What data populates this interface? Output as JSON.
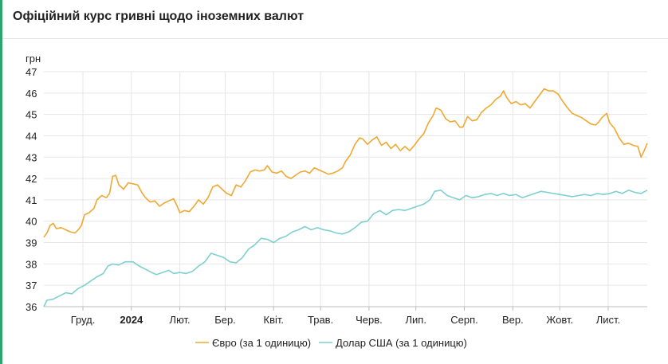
{
  "header": {
    "title": "Офіційний курс гривні щодо іноземних валют"
  },
  "colors": {
    "euro": "#f0a830",
    "usd": "#7fcfcf",
    "grid": "#e6e6e6",
    "accent": "#2aa56b"
  },
  "chart_data": {
    "type": "line",
    "title": "Офіційний курс гривні щодо іноземних валют",
    "ylabel": "грн",
    "xlabel": "",
    "ylim": [
      36,
      47
    ],
    "yticks": [
      36,
      37,
      38,
      39,
      40,
      41,
      42,
      43,
      44,
      45,
      46,
      47
    ],
    "xlim": [
      "2023-11-06",
      "2024-11-26"
    ],
    "xticks": [
      {
        "date": "2023-12-01",
        "label": "Груд."
      },
      {
        "date": "2024-01-01",
        "label": "2024",
        "bold": true
      },
      {
        "date": "2024-02-01",
        "label": "Лют."
      },
      {
        "date": "2024-03-01",
        "label": "Бер."
      },
      {
        "date": "2024-04-01",
        "label": "Квіт."
      },
      {
        "date": "2024-05-01",
        "label": "Трав."
      },
      {
        "date": "2024-06-01",
        "label": "Черв."
      },
      {
        "date": "2024-07-01",
        "label": "Лип."
      },
      {
        "date": "2024-08-01",
        "label": "Серп."
      },
      {
        "date": "2024-09-01",
        "label": "Вер."
      },
      {
        "date": "2024-10-01",
        "label": "Жовт."
      },
      {
        "date": "2024-11-01",
        "label": "Лист."
      }
    ],
    "grid": true,
    "legend_position": "bottom",
    "series": [
      {
        "name": "Євро (за 1 одиницю)",
        "color": "#f0a830",
        "points": [
          [
            "2023-11-06",
            39.25
          ],
          [
            "2023-11-08",
            39.45
          ],
          [
            "2023-11-10",
            39.8
          ],
          [
            "2023-11-12",
            39.9
          ],
          [
            "2023-11-14",
            39.65
          ],
          [
            "2023-11-17",
            39.7
          ],
          [
            "2023-11-20",
            39.6
          ],
          [
            "2023-11-23",
            39.5
          ],
          [
            "2023-11-26",
            39.45
          ],
          [
            "2023-11-28",
            39.6
          ],
          [
            "2023-11-30",
            39.8
          ],
          [
            "2023-12-02",
            40.3
          ],
          [
            "2023-12-05",
            40.4
          ],
          [
            "2023-12-08",
            40.6
          ],
          [
            "2023-12-10",
            41.0
          ],
          [
            "2023-12-13",
            41.2
          ],
          [
            "2023-12-16",
            41.1
          ],
          [
            "2023-12-18",
            41.3
          ],
          [
            "2023-12-20",
            42.1
          ],
          [
            "2023-12-22",
            42.15
          ],
          [
            "2023-12-24",
            41.7
          ],
          [
            "2023-12-27",
            41.5
          ],
          [
            "2023-12-30",
            41.8
          ],
          [
            "2024-01-02",
            41.75
          ],
          [
            "2024-01-05",
            41.7
          ],
          [
            "2024-01-08",
            41.3
          ],
          [
            "2024-01-10",
            41.1
          ],
          [
            "2024-01-13",
            40.9
          ],
          [
            "2024-01-16",
            40.95
          ],
          [
            "2024-01-19",
            40.7
          ],
          [
            "2024-01-22",
            40.85
          ],
          [
            "2024-01-25",
            40.95
          ],
          [
            "2024-01-28",
            41.05
          ],
          [
            "2024-01-30",
            40.75
          ],
          [
            "2024-02-01",
            40.4
          ],
          [
            "2024-02-04",
            40.5
          ],
          [
            "2024-02-07",
            40.45
          ],
          [
            "2024-02-10",
            40.7
          ],
          [
            "2024-02-13",
            41.0
          ],
          [
            "2024-02-16",
            40.8
          ],
          [
            "2024-02-19",
            41.1
          ],
          [
            "2024-02-22",
            41.6
          ],
          [
            "2024-02-25",
            41.7
          ],
          [
            "2024-02-28",
            41.5
          ],
          [
            "2024-03-02",
            41.3
          ],
          [
            "2024-03-05",
            41.2
          ],
          [
            "2024-03-08",
            41.7
          ],
          [
            "2024-03-11",
            41.6
          ],
          [
            "2024-03-14",
            41.9
          ],
          [
            "2024-03-17",
            42.3
          ],
          [
            "2024-03-20",
            42.4
          ],
          [
            "2024-03-23",
            42.35
          ],
          [
            "2024-03-26",
            42.4
          ],
          [
            "2024-03-28",
            42.6
          ],
          [
            "2024-03-31",
            42.3
          ],
          [
            "2024-04-03",
            42.25
          ],
          [
            "2024-04-06",
            42.35
          ],
          [
            "2024-04-09",
            42.1
          ],
          [
            "2024-04-12",
            42.0
          ],
          [
            "2024-04-15",
            42.15
          ],
          [
            "2024-04-18",
            42.3
          ],
          [
            "2024-04-21",
            42.35
          ],
          [
            "2024-04-24",
            42.25
          ],
          [
            "2024-04-27",
            42.5
          ],
          [
            "2024-04-30",
            42.4
          ],
          [
            "2024-05-03",
            42.3
          ],
          [
            "2024-05-06",
            42.2
          ],
          [
            "2024-05-09",
            42.25
          ],
          [
            "2024-05-12",
            42.35
          ],
          [
            "2024-05-15",
            42.5
          ],
          [
            "2024-05-17",
            42.8
          ],
          [
            "2024-05-20",
            43.1
          ],
          [
            "2024-05-23",
            43.6
          ],
          [
            "2024-05-26",
            43.9
          ],
          [
            "2024-05-28",
            43.85
          ],
          [
            "2024-05-31",
            43.6
          ],
          [
            "2024-06-03",
            43.8
          ],
          [
            "2024-06-06",
            43.95
          ],
          [
            "2024-06-09",
            43.55
          ],
          [
            "2024-06-12",
            43.7
          ],
          [
            "2024-06-15",
            43.4
          ],
          [
            "2024-06-18",
            43.6
          ],
          [
            "2024-06-21",
            43.3
          ],
          [
            "2024-06-24",
            43.5
          ],
          [
            "2024-06-27",
            43.3
          ],
          [
            "2024-06-30",
            43.55
          ],
          [
            "2024-07-03",
            43.85
          ],
          [
            "2024-07-06",
            44.1
          ],
          [
            "2024-07-09",
            44.6
          ],
          [
            "2024-07-12",
            44.95
          ],
          [
            "2024-07-14",
            45.3
          ],
          [
            "2024-07-17",
            45.2
          ],
          [
            "2024-07-20",
            44.8
          ],
          [
            "2024-07-23",
            44.65
          ],
          [
            "2024-07-26",
            44.7
          ],
          [
            "2024-07-29",
            44.4
          ],
          [
            "2024-07-31",
            44.4
          ],
          [
            "2024-08-03",
            44.9
          ],
          [
            "2024-08-06",
            44.7
          ],
          [
            "2024-08-09",
            44.75
          ],
          [
            "2024-08-12",
            45.1
          ],
          [
            "2024-08-15",
            45.3
          ],
          [
            "2024-08-18",
            45.45
          ],
          [
            "2024-08-21",
            45.7
          ],
          [
            "2024-08-24",
            45.85
          ],
          [
            "2024-08-26",
            46.1
          ],
          [
            "2024-08-28",
            45.8
          ],
          [
            "2024-08-31",
            45.5
          ],
          [
            "2024-09-03",
            45.6
          ],
          [
            "2024-09-06",
            45.45
          ],
          [
            "2024-09-09",
            45.5
          ],
          [
            "2024-09-12",
            45.3
          ],
          [
            "2024-09-15",
            45.6
          ],
          [
            "2024-09-18",
            45.9
          ],
          [
            "2024-09-21",
            46.2
          ],
          [
            "2024-09-24",
            46.1
          ],
          [
            "2024-09-27",
            46.1
          ],
          [
            "2024-09-30",
            45.95
          ],
          [
            "2024-10-03",
            45.6
          ],
          [
            "2024-10-06",
            45.3
          ],
          [
            "2024-10-09",
            45.05
          ],
          [
            "2024-10-12",
            44.95
          ],
          [
            "2024-10-15",
            44.85
          ],
          [
            "2024-10-18",
            44.7
          ],
          [
            "2024-10-21",
            44.55
          ],
          [
            "2024-10-24",
            44.5
          ],
          [
            "2024-10-26",
            44.65
          ],
          [
            "2024-10-28",
            44.85
          ],
          [
            "2024-10-31",
            45.05
          ],
          [
            "2024-11-02",
            44.6
          ],
          [
            "2024-11-05",
            44.35
          ],
          [
            "2024-11-08",
            43.9
          ],
          [
            "2024-11-11",
            43.6
          ],
          [
            "2024-11-14",
            43.65
          ],
          [
            "2024-11-17",
            43.55
          ],
          [
            "2024-11-20",
            43.5
          ],
          [
            "2024-11-22",
            43.0
          ],
          [
            "2024-11-24",
            43.3
          ],
          [
            "2024-11-26",
            43.65
          ]
        ]
      },
      {
        "name": "Долар США (за 1 одиницю)",
        "color": "#7fcfcf",
        "points": [
          [
            "2023-11-06",
            36.0
          ],
          [
            "2023-11-08",
            36.3
          ],
          [
            "2023-11-12",
            36.35
          ],
          [
            "2023-11-16",
            36.5
          ],
          [
            "2023-11-20",
            36.65
          ],
          [
            "2023-11-24",
            36.6
          ],
          [
            "2023-11-28",
            36.85
          ],
          [
            "2023-12-02",
            37.0
          ],
          [
            "2023-12-06",
            37.2
          ],
          [
            "2023-12-10",
            37.4
          ],
          [
            "2023-12-14",
            37.55
          ],
          [
            "2023-12-17",
            37.9
          ],
          [
            "2023-12-20",
            38.0
          ],
          [
            "2023-12-24",
            37.95
          ],
          [
            "2023-12-28",
            38.1
          ],
          [
            "2024-01-02",
            38.1
          ],
          [
            "2024-01-06",
            37.9
          ],
          [
            "2024-01-10",
            37.75
          ],
          [
            "2024-01-14",
            37.6
          ],
          [
            "2024-01-17",
            37.5
          ],
          [
            "2024-01-21",
            37.6
          ],
          [
            "2024-01-25",
            37.7
          ],
          [
            "2024-01-28",
            37.55
          ],
          [
            "2024-02-01",
            37.6
          ],
          [
            "2024-02-05",
            37.55
          ],
          [
            "2024-02-09",
            37.65
          ],
          [
            "2024-02-13",
            37.9
          ],
          [
            "2024-02-17",
            38.1
          ],
          [
            "2024-02-21",
            38.5
          ],
          [
            "2024-02-25",
            38.4
          ],
          [
            "2024-02-29",
            38.3
          ],
          [
            "2024-03-04",
            38.1
          ],
          [
            "2024-03-08",
            38.05
          ],
          [
            "2024-03-12",
            38.3
          ],
          [
            "2024-03-16",
            38.7
          ],
          [
            "2024-03-20",
            38.9
          ],
          [
            "2024-03-24",
            39.2
          ],
          [
            "2024-03-28",
            39.15
          ],
          [
            "2024-04-01",
            39.0
          ],
          [
            "2024-04-05",
            39.2
          ],
          [
            "2024-04-09",
            39.3
          ],
          [
            "2024-04-13",
            39.5
          ],
          [
            "2024-04-17",
            39.6
          ],
          [
            "2024-04-21",
            39.75
          ],
          [
            "2024-04-25",
            39.6
          ],
          [
            "2024-04-29",
            39.7
          ],
          [
            "2024-05-03",
            39.6
          ],
          [
            "2024-05-07",
            39.55
          ],
          [
            "2024-05-11",
            39.45
          ],
          [
            "2024-05-15",
            39.4
          ],
          [
            "2024-05-19",
            39.5
          ],
          [
            "2024-05-23",
            39.7
          ],
          [
            "2024-05-27",
            39.95
          ],
          [
            "2024-05-31",
            40.0
          ],
          [
            "2024-06-04",
            40.35
          ],
          [
            "2024-06-08",
            40.5
          ],
          [
            "2024-06-12",
            40.3
          ],
          [
            "2024-06-16",
            40.5
          ],
          [
            "2024-06-20",
            40.55
          ],
          [
            "2024-06-24",
            40.5
          ],
          [
            "2024-06-28",
            40.6
          ],
          [
            "2024-07-02",
            40.7
          ],
          [
            "2024-07-06",
            40.8
          ],
          [
            "2024-07-10",
            41.0
          ],
          [
            "2024-07-13",
            41.4
          ],
          [
            "2024-07-17",
            41.45
          ],
          [
            "2024-07-21",
            41.2
          ],
          [
            "2024-07-25",
            41.1
          ],
          [
            "2024-07-29",
            41.0
          ],
          [
            "2024-08-02",
            41.2
          ],
          [
            "2024-08-06",
            41.1
          ],
          [
            "2024-08-10",
            41.15
          ],
          [
            "2024-08-14",
            41.25
          ],
          [
            "2024-08-18",
            41.3
          ],
          [
            "2024-08-22",
            41.2
          ],
          [
            "2024-08-26",
            41.3
          ],
          [
            "2024-08-30",
            41.2
          ],
          [
            "2024-09-03",
            41.25
          ],
          [
            "2024-09-07",
            41.1
          ],
          [
            "2024-09-11",
            41.2
          ],
          [
            "2024-09-15",
            41.3
          ],
          [
            "2024-09-19",
            41.4
          ],
          [
            "2024-09-23",
            41.35
          ],
          [
            "2024-09-27",
            41.3
          ],
          [
            "2024-10-01",
            41.25
          ],
          [
            "2024-10-05",
            41.2
          ],
          [
            "2024-10-09",
            41.15
          ],
          [
            "2024-10-13",
            41.2
          ],
          [
            "2024-10-17",
            41.25
          ],
          [
            "2024-10-21",
            41.2
          ],
          [
            "2024-10-25",
            41.3
          ],
          [
            "2024-10-29",
            41.25
          ],
          [
            "2024-11-02",
            41.3
          ],
          [
            "2024-11-06",
            41.4
          ],
          [
            "2024-11-10",
            41.3
          ],
          [
            "2024-11-14",
            41.45
          ],
          [
            "2024-11-18",
            41.35
          ],
          [
            "2024-11-22",
            41.3
          ],
          [
            "2024-11-26",
            41.45
          ]
        ]
      }
    ]
  }
}
